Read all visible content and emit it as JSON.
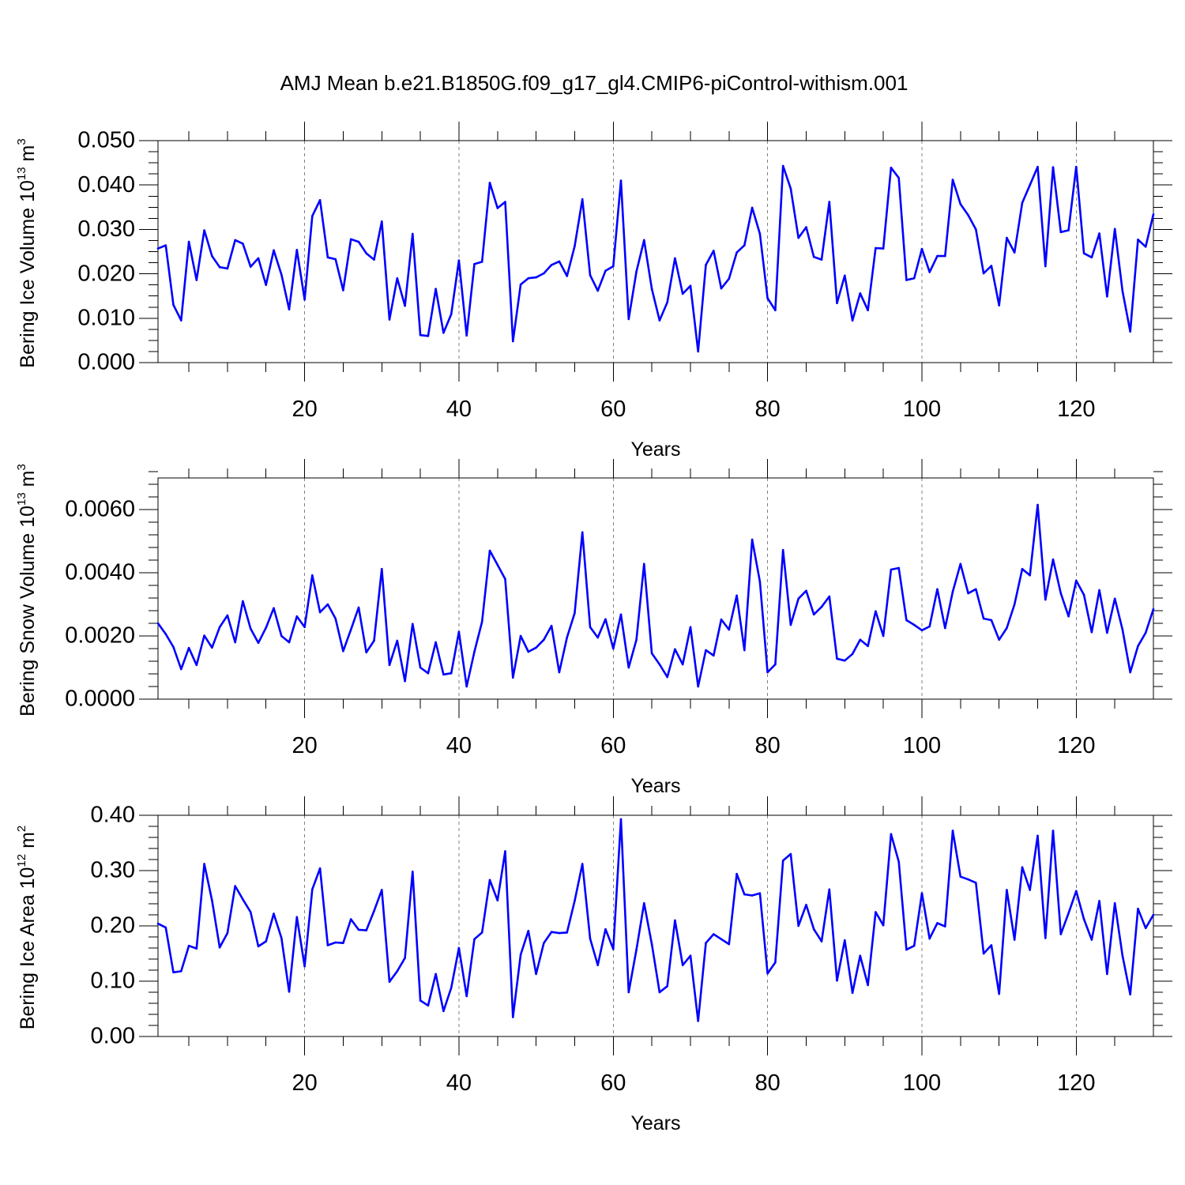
{
  "title": "AMJ Mean b.e21.B1850G.f09_g17_gl4.CMIP6-piControl-withism.001",
  "series_color": "#0000ff",
  "chart_data": [
    {
      "type": "line",
      "ylabel": "Bering Ice Volume",
      "ylabel_unit_base": "10",
      "ylabel_unit_exp": "13",
      "ylabel_unit_sym": "m",
      "ylabel_unit_sym_exp": "3",
      "xlabel": "Years",
      "xlim": [
        1,
        130
      ],
      "ylim": [
        0.0,
        0.05
      ],
      "xticks": [
        20,
        40,
        60,
        80,
        100,
        120
      ],
      "xtick_labels": [
        "20",
        "40",
        "60",
        "80",
        "100",
        "120"
      ],
      "yticks": [
        0.0,
        0.01,
        0.02,
        0.03,
        0.04,
        0.05
      ],
      "ytick_labels": [
        "0.000",
        "0.010",
        "0.020",
        "0.030",
        "0.040",
        "0.050"
      ],
      "y_minor_step": 0.0025,
      "grid": "vertical dashed at major x ticks",
      "x": [
        1,
        2,
        3,
        4,
        5,
        6,
        7,
        8,
        9,
        10,
        11,
        12,
        13,
        14,
        15,
        16,
        17,
        18,
        19,
        20,
        21,
        22,
        23,
        24,
        25,
        26,
        27,
        28,
        29,
        30,
        31,
        32,
        33,
        34,
        35,
        36,
        37,
        38,
        39,
        40,
        41,
        42,
        43,
        44,
        45,
        46,
        47,
        48,
        49,
        50,
        51,
        52,
        53,
        54,
        55,
        56,
        57,
        58,
        59,
        60,
        61,
        62,
        63,
        64,
        65,
        66,
        67,
        68,
        69,
        70,
        71,
        72,
        73,
        74,
        75,
        76,
        77,
        78,
        79,
        80,
        81,
        82,
        83,
        84,
        85,
        86,
        87,
        88,
        89,
        90,
        91,
        92,
        93,
        94,
        95,
        96,
        97,
        98,
        99,
        100,
        101,
        102,
        103,
        104,
        105,
        106,
        107,
        108,
        109,
        110,
        111,
        112,
        113,
        114,
        115,
        116,
        117,
        118,
        119,
        120,
        121,
        122,
        123,
        124,
        125,
        126,
        127,
        128,
        129,
        130
      ],
      "values": [
        0.0257,
        0.0264,
        0.013,
        0.0095,
        0.0272,
        0.0186,
        0.0298,
        0.024,
        0.0215,
        0.0212,
        0.0276,
        0.0268,
        0.0216,
        0.0235,
        0.0175,
        0.0253,
        0.0198,
        0.012,
        0.0254,
        0.0142,
        0.033,
        0.0366,
        0.0237,
        0.0233,
        0.0163,
        0.0278,
        0.0272,
        0.0246,
        0.0232,
        0.0318,
        0.0097,
        0.019,
        0.0128,
        0.029,
        0.0062,
        0.006,
        0.0166,
        0.0067,
        0.0109,
        0.023,
        0.0061,
        0.0222,
        0.0227,
        0.0405,
        0.0348,
        0.0362,
        0.0048,
        0.0176,
        0.019,
        0.0192,
        0.0201,
        0.022,
        0.0228,
        0.0195,
        0.0262,
        0.0368,
        0.0197,
        0.0162,
        0.0207,
        0.0217,
        0.041,
        0.0098,
        0.0205,
        0.0276,
        0.0166,
        0.0095,
        0.0136,
        0.0235,
        0.0155,
        0.0173,
        0.0025,
        0.022,
        0.0252,
        0.0167,
        0.0189,
        0.0248,
        0.0264,
        0.0349,
        0.029,
        0.0145,
        0.0118,
        0.0443,
        0.0392,
        0.0281,
        0.0305,
        0.0238,
        0.0232,
        0.0362,
        0.0134,
        0.0196,
        0.0095,
        0.0156,
        0.0118,
        0.0258,
        0.0257,
        0.0439,
        0.0416,
        0.0186,
        0.019,
        0.0256,
        0.0204,
        0.024,
        0.024,
        0.0412,
        0.0357,
        0.0332,
        0.03,
        0.0201,
        0.0218,
        0.0129,
        0.0281,
        0.0248,
        0.036,
        0.04,
        0.0441,
        0.0217,
        0.044,
        0.0294,
        0.0298,
        0.0441,
        0.0246,
        0.0237,
        0.0291,
        0.0149,
        0.0301,
        0.0161,
        0.007,
        0.0277,
        0.0261,
        0.0334
      ]
    },
    {
      "type": "line",
      "ylabel": "Bering Snow Volume",
      "ylabel_unit_base": "10",
      "ylabel_unit_exp": "13",
      "ylabel_unit_sym": "m",
      "ylabel_unit_sym_exp": "3",
      "xlabel": "Years",
      "xlim": [
        1,
        130
      ],
      "ylim": [
        0.0,
        0.007
      ],
      "xticks": [
        20,
        40,
        60,
        80,
        100,
        120
      ],
      "xtick_labels": [
        "20",
        "40",
        "60",
        "80",
        "100",
        "120"
      ],
      "yticks": [
        0.0,
        0.002,
        0.004,
        0.006
      ],
      "ytick_labels": [
        "0.0000",
        "0.0020",
        "0.0040",
        "0.0060"
      ],
      "y_minor_step": 0.0004,
      "grid": "vertical dashed at major x ticks",
      "x": [
        1,
        2,
        3,
        4,
        5,
        6,
        7,
        8,
        9,
        10,
        11,
        12,
        13,
        14,
        15,
        16,
        17,
        18,
        19,
        20,
        21,
        22,
        23,
        24,
        25,
        26,
        27,
        28,
        29,
        30,
        31,
        32,
        33,
        34,
        35,
        36,
        37,
        38,
        39,
        40,
        41,
        42,
        43,
        44,
        45,
        46,
        47,
        48,
        49,
        50,
        51,
        52,
        53,
        54,
        55,
        56,
        57,
        58,
        59,
        60,
        61,
        62,
        63,
        64,
        65,
        66,
        67,
        68,
        69,
        70,
        71,
        72,
        73,
        74,
        75,
        76,
        77,
        78,
        79,
        80,
        81,
        82,
        83,
        84,
        85,
        86,
        87,
        88,
        89,
        90,
        91,
        92,
        93,
        94,
        95,
        96,
        97,
        98,
        99,
        100,
        101,
        102,
        103,
        104,
        105,
        106,
        107,
        108,
        109,
        110,
        111,
        112,
        113,
        114,
        115,
        116,
        117,
        118,
        119,
        120,
        121,
        122,
        123,
        124,
        125,
        126,
        127,
        128,
        129,
        130
      ],
      "values": [
        0.0024,
        0.00206,
        0.00165,
        0.00095,
        0.00162,
        0.00108,
        0.00201,
        0.00163,
        0.00228,
        0.00265,
        0.0018,
        0.0031,
        0.00223,
        0.00178,
        0.00226,
        0.00288,
        0.002,
        0.0018,
        0.00262,
        0.00228,
        0.00392,
        0.00275,
        0.003,
        0.00255,
        0.00152,
        0.0022,
        0.0029,
        0.00148,
        0.00185,
        0.00412,
        0.00108,
        0.00185,
        0.00057,
        0.00238,
        0.001,
        0.00082,
        0.0018,
        0.00078,
        0.00082,
        0.00213,
        0.0004,
        0.0015,
        0.00245,
        0.0047,
        0.00425,
        0.0038,
        0.00068,
        0.002,
        0.0015,
        0.00163,
        0.00188,
        0.00232,
        0.00085,
        0.00195,
        0.00272,
        0.00528,
        0.00228,
        0.00195,
        0.00253,
        0.0016,
        0.00268,
        0.001,
        0.00188,
        0.00428,
        0.00145,
        0.0011,
        0.0007,
        0.00158,
        0.0011,
        0.00228,
        0.0004,
        0.00155,
        0.00138,
        0.00252,
        0.0022,
        0.00328,
        0.00155,
        0.00505,
        0.00372,
        0.00085,
        0.0011,
        0.00472,
        0.00235,
        0.00318,
        0.00343,
        0.00268,
        0.00292,
        0.00325,
        0.00128,
        0.00122,
        0.00143,
        0.00188,
        0.00168,
        0.00278,
        0.002,
        0.0041,
        0.00415,
        0.0025,
        0.00235,
        0.00218,
        0.0023,
        0.00348,
        0.00225,
        0.0034,
        0.00428,
        0.00335,
        0.00348,
        0.00255,
        0.0025,
        0.00188,
        0.00225,
        0.003,
        0.00412,
        0.00392,
        0.00615,
        0.00315,
        0.00442,
        0.00335,
        0.00262,
        0.00375,
        0.0033,
        0.00212,
        0.00345,
        0.0021,
        0.00318,
        0.0022,
        0.00085,
        0.00168,
        0.0021,
        0.00285
      ]
    },
    {
      "type": "line",
      "ylabel": "Bering Ice Area",
      "ylabel_unit_base": "10",
      "ylabel_unit_exp": "12",
      "ylabel_unit_sym": "m",
      "ylabel_unit_sym_exp": "2",
      "xlabel": "Years",
      "xlim": [
        1,
        130
      ],
      "ylim": [
        0.0,
        0.4
      ],
      "xticks": [
        20,
        40,
        60,
        80,
        100,
        120
      ],
      "xtick_labels": [
        "20",
        "40",
        "60",
        "80",
        "100",
        "120"
      ],
      "yticks": [
        0.0,
        0.1,
        0.2,
        0.3,
        0.4
      ],
      "ytick_labels": [
        "0.00",
        "0.10",
        "0.20",
        "0.30",
        "0.40"
      ],
      "y_minor_step": 0.02,
      "grid": "vertical dashed at major x ticks",
      "x": [
        1,
        2,
        3,
        4,
        5,
        6,
        7,
        8,
        9,
        10,
        11,
        12,
        13,
        14,
        15,
        16,
        17,
        18,
        19,
        20,
        21,
        22,
        23,
        24,
        25,
        26,
        27,
        28,
        29,
        30,
        31,
        32,
        33,
        34,
        35,
        36,
        37,
        38,
        39,
        40,
        41,
        42,
        43,
        44,
        45,
        46,
        47,
        48,
        49,
        50,
        51,
        52,
        53,
        54,
        55,
        56,
        57,
        58,
        59,
        60,
        61,
        62,
        63,
        64,
        65,
        66,
        67,
        68,
        69,
        70,
        71,
        72,
        73,
        74,
        75,
        76,
        77,
        78,
        79,
        80,
        81,
        82,
        83,
        84,
        85,
        86,
        87,
        88,
        89,
        90,
        91,
        92,
        93,
        94,
        95,
        96,
        97,
        98,
        99,
        100,
        101,
        102,
        103,
        104,
        105,
        106,
        107,
        108,
        109,
        110,
        111,
        112,
        113,
        114,
        115,
        116,
        117,
        118,
        119,
        120,
        121,
        122,
        123,
        124,
        125,
        126,
        127,
        128,
        129,
        130
      ],
      "values": [
        0.204,
        0.197,
        0.116,
        0.118,
        0.164,
        0.159,
        0.312,
        0.246,
        0.161,
        0.187,
        0.272,
        0.248,
        0.225,
        0.163,
        0.172,
        0.222,
        0.178,
        0.081,
        0.216,
        0.127,
        0.266,
        0.304,
        0.165,
        0.17,
        0.169,
        0.212,
        0.193,
        0.192,
        0.227,
        0.265,
        0.099,
        0.118,
        0.142,
        0.298,
        0.065,
        0.056,
        0.113,
        0.046,
        0.088,
        0.16,
        0.073,
        0.176,
        0.188,
        0.283,
        0.246,
        0.335,
        0.035,
        0.148,
        0.191,
        0.113,
        0.169,
        0.189,
        0.187,
        0.188,
        0.245,
        0.312,
        0.177,
        0.129,
        0.194,
        0.158,
        0.393,
        0.08,
        0.157,
        0.241,
        0.167,
        0.08,
        0.091,
        0.21,
        0.129,
        0.146,
        0.028,
        0.169,
        0.185,
        0.176,
        0.167,
        0.294,
        0.257,
        0.255,
        0.259,
        0.114,
        0.134,
        0.318,
        0.33,
        0.2,
        0.238,
        0.194,
        0.172,
        0.266,
        0.101,
        0.174,
        0.079,
        0.146,
        0.093,
        0.225,
        0.201,
        0.366,
        0.316,
        0.157,
        0.164,
        0.259,
        0.177,
        0.205,
        0.199,
        0.372,
        0.289,
        0.284,
        0.278,
        0.15,
        0.165,
        0.077,
        0.265,
        0.175,
        0.306,
        0.265,
        0.363,
        0.178,
        0.372,
        0.185,
        0.223,
        0.263,
        0.212,
        0.175,
        0.245,
        0.113,
        0.241,
        0.146,
        0.076,
        0.231,
        0.196,
        0.22
      ]
    }
  ]
}
